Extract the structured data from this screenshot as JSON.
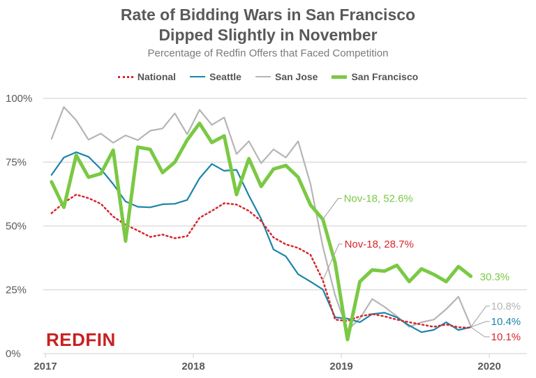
{
  "title_line1": "Rate of Bidding Wars in San Francisco",
  "title_line2": "Dipped Slightly in November",
  "subtitle": "Percentage of Redfin Offers that Faced Competition",
  "logo_text": "REDFIN",
  "colors": {
    "National": "#d7252b",
    "Seattle": "#1b84a8",
    "San Jose": "#b5b5b5",
    "San Francisco": "#7ac943",
    "grid": "#dddddd",
    "text": "#595959"
  },
  "chart_data": {
    "type": "line",
    "title": "Rate of Bidding Wars in San Francisco Dipped Slightly in November",
    "subtitle": "Percentage of Redfin Offers that Faced Competition",
    "x_start": "2017-01",
    "x_frequency": "monthly",
    "x_ticks": [
      "2017",
      "2018",
      "2019",
      "2020"
    ],
    "y_ticks": [
      "100%",
      "75%",
      "50%",
      "25%",
      "0%"
    ],
    "ylim": [
      0,
      100
    ],
    "xlim": [
      "2017-01",
      "2020-06"
    ],
    "grid": true,
    "legend": "top",
    "series": [
      {
        "name": "National",
        "style": "dotted",
        "values": [
          55.0,
          59.1,
          62.3,
          60.9,
          58.7,
          53.7,
          50.5,
          48.2,
          45.7,
          46.6,
          45.2,
          46.0,
          53.2,
          55.9,
          58.9,
          58.4,
          55.9,
          51.9,
          45.5,
          42.8,
          41.4,
          38.7,
          28.7,
          13.3,
          12.8,
          14.6,
          15.5,
          14.6,
          13.3,
          12.3,
          11.4,
          10.5,
          11.4,
          10.3,
          10.1
        ]
      },
      {
        "name": "Seattle",
        "style": "solid",
        "values": [
          70.0,
          76.8,
          78.9,
          77.1,
          72.3,
          66.4,
          59.6,
          57.5,
          57.3,
          58.5,
          58.7,
          60.2,
          68.7,
          74.3,
          71.6,
          72.0,
          61.9,
          52.8,
          40.8,
          38.1,
          31.1,
          28.2,
          25.1,
          14.2,
          13.7,
          12.3,
          15.5,
          16.0,
          14.2,
          11.0,
          8.4,
          9.3,
          12.3,
          9.2,
          10.4
        ]
      },
      {
        "name": "San Jose",
        "style": "solid",
        "values": [
          84.1,
          96.6,
          91.4,
          83.8,
          86.2,
          82.6,
          85.5,
          83.6,
          87.3,
          88.2,
          94.1,
          85.9,
          95.5,
          89.6,
          92.5,
          78.2,
          83.2,
          74.6,
          80.0,
          76.8,
          83.2,
          66.4,
          41.9,
          22.8,
          9.2,
          13.7,
          21.4,
          18.3,
          14.6,
          10.5,
          12.3,
          13.3,
          17.4,
          22.3,
          10.8
        ]
      },
      {
        "name": "San Francisco",
        "style": "thick",
        "values": [
          67.3,
          57.3,
          77.7,
          69.1,
          70.5,
          79.7,
          44.1,
          80.9,
          80.0,
          70.9,
          75.0,
          83.7,
          90.2,
          82.7,
          85.3,
          62.3,
          76.4,
          65.5,
          72.3,
          73.7,
          69.1,
          58.2,
          52.6,
          35.5,
          5.5,
          28.2,
          32.8,
          32.3,
          34.6,
          28.2,
          33.2,
          31.0,
          28.2,
          34.1,
          30.3
        ]
      }
    ],
    "annotations": [
      {
        "series": "San Francisco",
        "text": "Nov-18, 52.6%"
      },
      {
        "series": "National",
        "text": "Nov-18, 28.7%"
      },
      {
        "series": "San Francisco",
        "text": "30.3%"
      },
      {
        "series": "San Jose",
        "text": "10.8%"
      },
      {
        "series": "Seattle",
        "text": "10.4%"
      },
      {
        "series": "National",
        "text": "10.1%"
      }
    ]
  }
}
